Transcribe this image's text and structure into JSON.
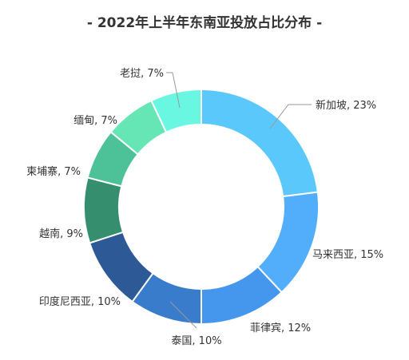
{
  "chart_data": {
    "type": "pie",
    "style": "donut",
    "title": "- 2022年上半年东南亚投放占比分布 -",
    "unit": "%",
    "slices": [
      {
        "label": "新加坡",
        "value": 23,
        "color": "#5BC8FC"
      },
      {
        "label": "马来西亚",
        "value": 15,
        "color": "#52AEFA"
      },
      {
        "label": "菲律宾",
        "value": 12,
        "color": "#4597EE"
      },
      {
        "label": "泰国",
        "value": 10,
        "color": "#3A7CCC"
      },
      {
        "label": "印度尼西亚",
        "value": 10,
        "color": "#2D5A96"
      },
      {
        "label": "越南",
        "value": 9,
        "color": "#358E6E"
      },
      {
        "label": "柬埔寨",
        "value": 7,
        "color": "#4DC298"
      },
      {
        "label": "缅甸",
        "value": 7,
        "color": "#66E6B4"
      },
      {
        "label": "老挝",
        "value": 7,
        "color": "#6AF7E1"
      }
    ]
  }
}
